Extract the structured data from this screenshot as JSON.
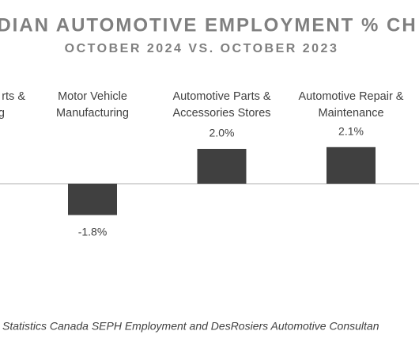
{
  "chart_data": {
    "type": "bar",
    "title": "DIAN AUTOMOTIVE EMPLOYMENT % CH",
    "subtitle": "OCTOBER 2024 VS. OCTOBER 2023",
    "categories": [
      "rts &\ng",
      "Motor Vehicle\nManufacturing",
      "Automotive Parts &\nAccessories Stores",
      "Automotive Repair &\nMaintenance"
    ],
    "values": [
      null,
      -1.8,
      2.0,
      2.1
    ],
    "value_labels": [
      null,
      "-1.8%",
      "2.0%",
      "2.1%"
    ],
    "color": "#404040",
    "ylim": [
      -3,
      2.5
    ],
    "source": "Statistics Canada SEPH Employment and DesRosiers Automotive Consultan"
  }
}
